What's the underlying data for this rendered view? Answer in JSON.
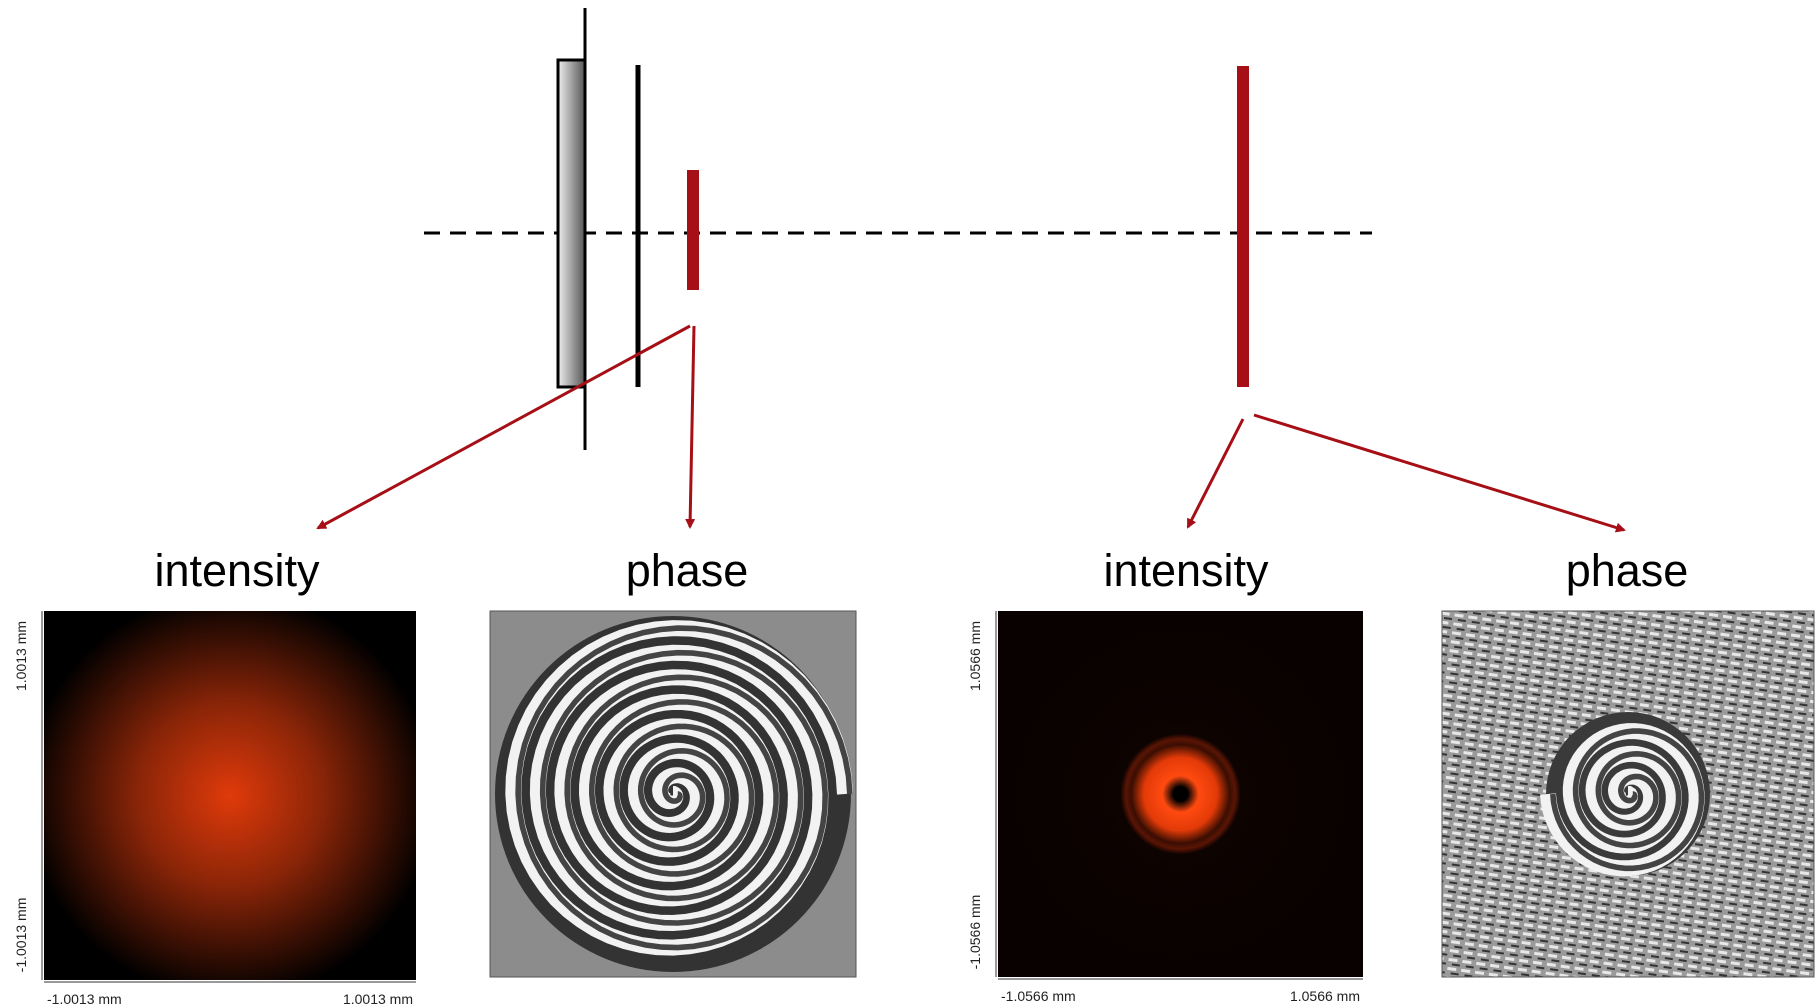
{
  "panels": [
    {
      "label": "intensity",
      "y_top": "1.0013 mm",
      "y_bottom": "-1.0013 mm",
      "x_left": "-1.0013 mm",
      "x_right": "1.0013 mm"
    },
    {
      "label": "phase"
    },
    {
      "label": "intensity",
      "y_top": "1.0566 mm",
      "y_bottom": "-1.0566 mm",
      "x_left": "-1.0566 mm",
      "x_right": "1.0566 mm"
    },
    {
      "label": "phase"
    }
  ]
}
